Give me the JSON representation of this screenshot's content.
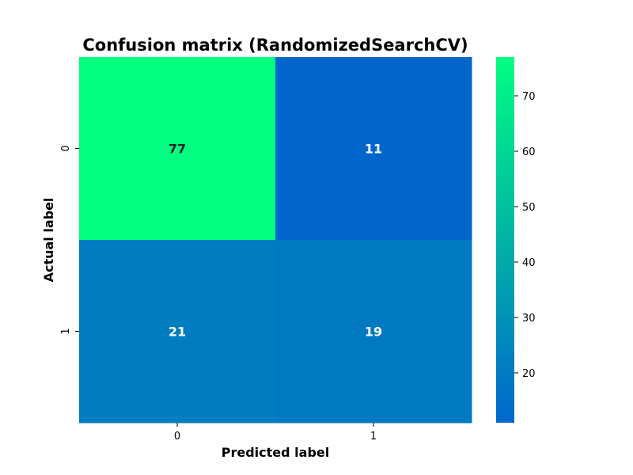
{
  "chart_data": {
    "type": "heatmap",
    "title": "Confusion matrix (RandomizedSearchCV)",
    "xlabel": "Predicted label",
    "ylabel": "Actual label",
    "x_categories": [
      "0",
      "1"
    ],
    "y_categories": [
      "0",
      "1"
    ],
    "values": [
      [
        77,
        11
      ],
      [
        21,
        19
      ]
    ],
    "colormap": "winter",
    "color_min": 11,
    "color_max": 77,
    "colormap_low": "#0066cc",
    "colormap_high": "#00ff80",
    "colorbar_ticks": [
      "20",
      "30",
      "40",
      "50",
      "60",
      "70"
    ]
  }
}
